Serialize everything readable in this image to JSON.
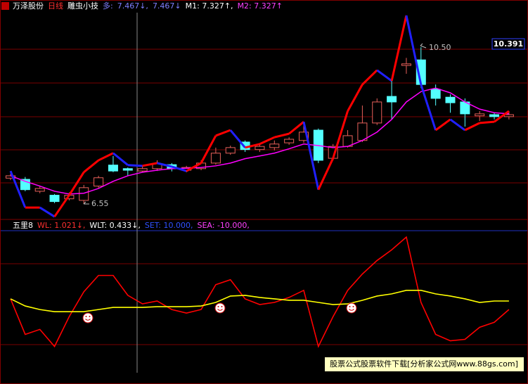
{
  "chart_data": [
    {
      "type": "candlestick",
      "header": [
        {
          "text": "万泽股份",
          "color": "#ffffff"
        },
        {
          "text": "日线",
          "color": "#ff3030"
        },
        {
          "text": "雕虫小技",
          "color": "#ffffff"
        },
        {
          "text": "多:",
          "color": "#7f7fff"
        },
        {
          "text": "7.467↓,",
          "color": "#7f7fff"
        },
        {
          "text": "7.467↓",
          "color": "#7f7fff"
        },
        {
          "text": "M1: 7.327↑,",
          "color": "#ffffff"
        },
        {
          "text": "M2: 7.327↑",
          "color": "#ff40ff"
        }
      ],
      "annotations": [
        "10.50",
        "6.55"
      ],
      "price_label": "10.391",
      "ylim": [
        6.16,
        11.37
      ],
      "up_color": "#e8605a",
      "down_color": "#54ffff",
      "open": [
        7.2,
        7.17,
        6.87,
        6.77,
        6.68,
        6.64,
        7.0,
        7.53,
        7.44,
        7.38,
        7.44,
        7.54,
        7.4,
        7.44,
        7.58,
        7.83,
        8.11,
        7.92,
        7.97,
        8.09,
        8.15,
        8.41,
        7.7,
        8.0,
        8.15,
        8.59,
        9.26,
        10.04,
        10.18,
        9.44,
        9.24,
        9.12,
        8.77,
        8.8,
        8.75
      ],
      "high": [
        7.31,
        7.23,
        6.99,
        6.8,
        6.84,
        7.03,
        7.26,
        7.76,
        7.47,
        7.51,
        7.65,
        7.58,
        7.51,
        7.65,
        7.97,
        8.02,
        8.15,
        8.06,
        8.15,
        8.23,
        8.59,
        8.45,
        8.06,
        8.41,
        9.03,
        9.21,
        9.65,
        10.23,
        10.5,
        9.56,
        9.31,
        9.21,
        8.89,
        8.85,
        8.89
      ],
      "low": [
        7.15,
        6.87,
        6.82,
        6.57,
        6.64,
        6.55,
        6.96,
        7.35,
        7.26,
        7.35,
        7.38,
        7.37,
        7.35,
        7.4,
        7.54,
        7.79,
        7.86,
        7.86,
        7.9,
        8.04,
        8.09,
        7.58,
        7.65,
        7.97,
        8.11,
        8.54,
        8.68,
        9.83,
        9.47,
        9.03,
        8.85,
        8.5,
        8.64,
        8.68,
        8.68
      ],
      "close": [
        7.26,
        6.91,
        6.94,
        6.61,
        6.77,
        6.96,
        7.21,
        7.38,
        7.4,
        7.44,
        7.56,
        7.44,
        7.47,
        7.58,
        7.83,
        7.97,
        7.92,
        8.0,
        8.06,
        8.18,
        8.36,
        7.65,
        8.0,
        8.27,
        8.59,
        9.12,
        9.12,
        10.08,
        9.56,
        9.21,
        9.1,
        8.82,
        8.82,
        8.75,
        8.8
      ],
      "zigzag": {
        "up_color": "#ff0000",
        "down_color": "#2020ff",
        "values": [
          7.38,
          6.46,
          6.46,
          6.23,
          6.77,
          7.35,
          7.65,
          7.83,
          7.53,
          7.51,
          7.58,
          7.49,
          7.38,
          7.58,
          8.27,
          8.41,
          7.97,
          8.06,
          8.23,
          8.32,
          8.62,
          6.91,
          7.7,
          8.89,
          9.56,
          9.92,
          9.65,
          11.3,
          9.56,
          8.41,
          8.68,
          8.41,
          8.59,
          8.62,
          8.89
        ]
      },
      "lines": [
        {
          "color": "#ff00ff",
          "values": [
            7.26,
            7.12,
            7.0,
            6.87,
            6.8,
            6.82,
            6.94,
            7.12,
            7.26,
            7.35,
            7.4,
            7.44,
            7.45,
            7.47,
            7.51,
            7.58,
            7.69,
            7.76,
            7.83,
            7.94,
            8.06,
            8.02,
            7.97,
            8.0,
            8.15,
            8.36,
            8.68,
            9.12,
            9.38,
            9.47,
            9.35,
            9.12,
            8.94,
            8.85,
            8.82
          ]
        }
      ]
    },
    {
      "type": "line",
      "header": [
        {
          "text": "五里8",
          "color": "#ffffff"
        },
        {
          "text": "WL: 1.021↓,",
          "color": "#ff3030"
        },
        {
          "text": "WLT: 0.433↓,",
          "color": "#ffffff"
        },
        {
          "text": "SET: 10.000,",
          "color": "#3050ff"
        },
        {
          "text": "SEA: -10.000,",
          "color": "#ff40ff"
        }
      ],
      "ylim": [
        -10,
        10
      ],
      "series": [
        {
          "color": "#ff0000",
          "values": [
            0.4,
            -4.6,
            -3.9,
            -6.3,
            -2.1,
            1.4,
            3.7,
            3.7,
            0.9,
            -0.3,
            0.1,
            -1.1,
            -1.6,
            -1.1,
            2.4,
            3.1,
            0.4,
            -0.4,
            -0.1,
            0.6,
            1.6,
            -6.3,
            -2.1,
            1.6,
            3.9,
            5.8,
            7.3,
            9.1,
            -0.1,
            -4.6,
            -5.5,
            -5.3,
            -3.6,
            -2.9,
            -1.1
          ]
        },
        {
          "color": "#ffff00",
          "values": [
            0.4,
            -0.6,
            -1.1,
            -1.4,
            -1.4,
            -1.4,
            -1.1,
            -0.8,
            -0.8,
            -0.8,
            -0.7,
            -0.7,
            -0.7,
            -0.6,
            -0.1,
            0.8,
            0.9,
            0.6,
            0.4,
            0.2,
            0.2,
            -0.1,
            -0.4,
            -0.3,
            0.2,
            0.8,
            1.1,
            1.6,
            1.6,
            1.1,
            0.8,
            0.4,
            -0.1,
            0.1,
            0.1
          ]
        }
      ]
    }
  ],
  "watermark": "股票公式股票软件下载[分析家公式网www.88gs.com]"
}
